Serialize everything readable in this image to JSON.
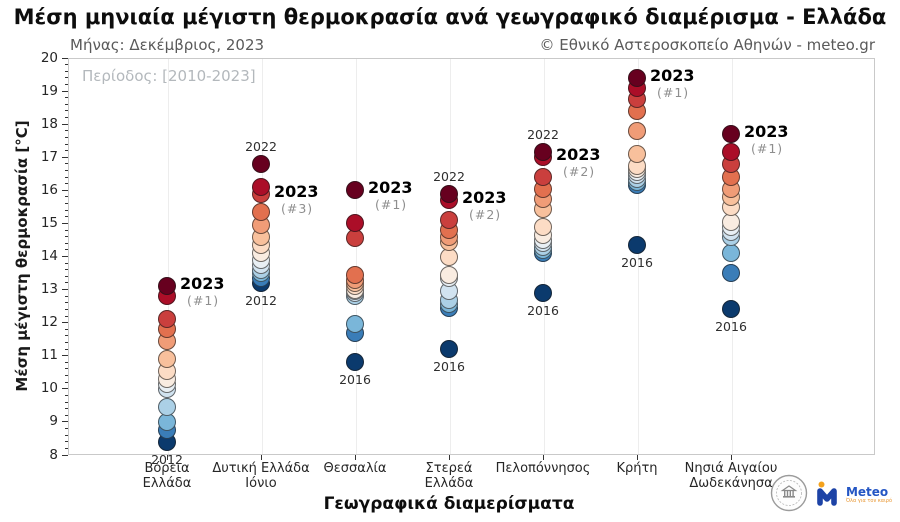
{
  "title": "Μέση μηνιαία μέγιστη θερμοκρασία ανά γεωγραφικό διαμέρισμα - Ελλάδα",
  "subtitle_left": "Μήνας: Δεκέμβριος, 2023",
  "subtitle_right": "© Εθνικό Αστεροσκοπείο Αθηνών - meteo.gr",
  "period_label": "Περίοδος: [2010-2023]",
  "ylabel": "Μέση μέγιστη θερμοκρασία [°C]",
  "xlabel": "Γεωγραφικά διαμερίσματα",
  "logos": {
    "noa_seal": "national-observatory-of-athens-seal",
    "meteo_label": "Meteo",
    "meteo_tagline": "Όλα για τον καιρό"
  },
  "chart_data": {
    "type": "scatter",
    "title": "Μέση μηνιαία μέγιστη θερμοκρασία ανά γεωγραφικό διαμέρισμα - Ελλάδα",
    "xlabel": "Γεωγραφικά διαμερίσματα",
    "ylabel": "Μέση μέγιστη θερμοκρασία [°C]",
    "ylim": [
      8,
      20
    ],
    "y_major_tick_step": 1,
    "y_minor_tick_step": 0.2,
    "grid": "vertical category gridlines only",
    "years_range": "2010-2023",
    "points_per_region": 14,
    "color_rule": "rank within region: warmest = dark red, coldest = dark navy (RdBu)",
    "palette": [
      "#67001f",
      "#ab0e28",
      "#ca3f3d",
      "#e2704f",
      "#f09c77",
      "#f8c09c",
      "#fcdcc5",
      "#f9ece1",
      "#e8eff4",
      "#d1e3f0",
      "#abd0e6",
      "#7ab6d9",
      "#3a7db8",
      "#0b3a6d"
    ],
    "categories": [
      "Βόρεια Ελλάδα",
      "Δυτική Ελλάδα Ιόνιο",
      "Θεσσαλία",
      "Στερεά Ελλάδα",
      "Πελοπόννησος",
      "Κρήτη",
      "Νησιά Αιγαίου Δωδεκάνησα"
    ],
    "annotation_2023_label": "2023",
    "regions": [
      {
        "name": "Βόρεια Ελλάδα",
        "label_lines": [
          "Βόρεια",
          "Ελλάδα"
        ],
        "values_desc": [
          13.1,
          12.8,
          12.1,
          11.8,
          11.45,
          10.9,
          10.55,
          10.3,
          10.15,
          10.0,
          9.45,
          9.0,
          8.75,
          8.4
        ],
        "year2023_rank": 1,
        "annotation_rank": "(#1)",
        "top_year_label": null,
        "bottom_year_label": "2012"
      },
      {
        "name": "Δυτική Ελλάδα Ιόνιο",
        "label_lines": [
          "Δυτική Ελλάδα",
          "Ιόνιο"
        ],
        "values_desc": [
          16.8,
          16.1,
          15.9,
          15.35,
          14.95,
          14.6,
          14.35,
          14.1,
          13.9,
          13.75,
          13.6,
          13.5,
          13.35,
          13.2
        ],
        "year2023_rank": 3,
        "annotation_rank": "(#3)",
        "top_year_label": "2022",
        "bottom_year_label": "2012"
      },
      {
        "name": "Θεσσαλία",
        "label_lines": [
          "Θεσσαλία"
        ],
        "values_desc": [
          16.0,
          15.0,
          14.55,
          13.45,
          13.3,
          13.2,
          13.1,
          13.0,
          12.95,
          12.9,
          12.8,
          11.95,
          11.7,
          10.8
        ],
        "year2023_rank": 1,
        "annotation_rank": "(#1)",
        "top_year_label": null,
        "bottom_year_label": "2016"
      },
      {
        "name": "Στερεά Ελλάδα",
        "label_lines": [
          "Στερεά",
          "Ελλάδα"
        ],
        "values_desc": [
          15.9,
          15.72,
          15.1,
          14.8,
          14.6,
          14.45,
          14.0,
          13.45,
          13.35,
          12.95,
          12.7,
          12.55,
          12.45,
          11.2
        ],
        "year2023_rank": 2,
        "annotation_rank": "(#2)",
        "top_year_label": "2022",
        "bottom_year_label": "2016"
      },
      {
        "name": "Πελοπόννησος",
        "label_lines": [
          "Πελοπόννησος"
        ],
        "values_desc": [
          17.15,
          17.0,
          16.4,
          16.05,
          15.75,
          15.45,
          14.9,
          14.65,
          14.5,
          14.4,
          14.3,
          14.2,
          14.1,
          12.9
        ],
        "year2023_rank": 2,
        "annotation_rank": "(#2)",
        "top_year_label": "2022",
        "bottom_year_label": "2016"
      },
      {
        "name": "Κρήτη",
        "label_lines": [
          "Κρήτη"
        ],
        "values_desc": [
          19.4,
          19.1,
          18.75,
          18.4,
          17.8,
          17.1,
          16.75,
          16.65,
          16.55,
          16.45,
          16.35,
          16.25,
          16.15,
          14.35
        ],
        "year2023_rank": 1,
        "annotation_rank": "(#1)",
        "top_year_label": null,
        "bottom_year_label": "2016"
      },
      {
        "name": "Νησιά Αιγαίου Δωδεκάνησα",
        "label_lines": [
          "Νησιά Αιγαίου",
          "Δωδεκάνησα"
        ],
        "values_desc": [
          17.7,
          17.15,
          16.8,
          16.4,
          16.05,
          15.8,
          15.5,
          15.05,
          14.9,
          14.75,
          14.6,
          14.1,
          13.5,
          12.4
        ],
        "year2023_rank": 1,
        "annotation_rank": "(#1)",
        "top_year_label": null,
        "bottom_year_label": "2016"
      }
    ]
  }
}
